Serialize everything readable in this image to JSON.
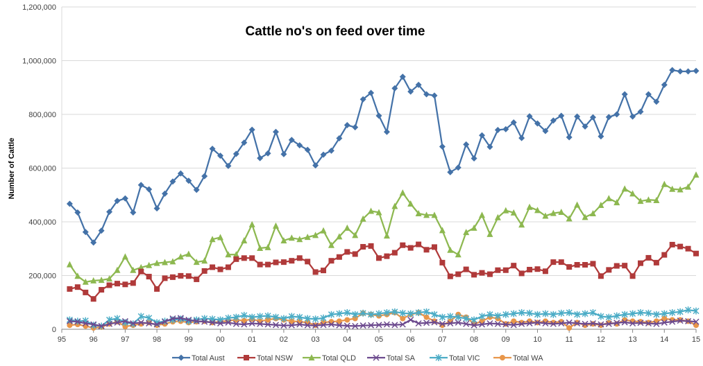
{
  "chart_data": {
    "type": "line",
    "title": "Cattle no's on feed over time",
    "xlabel": "",
    "ylabel": "Number of Cattle",
    "ylim": [
      0,
      1200000
    ],
    "xlim": [
      95,
      115
    ],
    "y_ticks": [
      "0",
      "200,000",
      "400,000",
      "600,000",
      "800,000",
      "1,000,000",
      "1,200,000"
    ],
    "x_ticks": [
      "95",
      "96",
      "97",
      "98",
      "99",
      "00",
      "01",
      "02",
      "03",
      "04",
      "05",
      "06",
      "07",
      "08",
      "09",
      "10",
      "11",
      "12",
      "13",
      "14",
      "15"
    ],
    "grid": "horizontal",
    "legend_position": "bottom",
    "x_start": 95.25,
    "x_step": 0.25,
    "series": [
      {
        "name": "Total Aust",
        "color": "#4472A8",
        "marker": "diamond",
        "values": [
          467000,
          435000,
          362000,
          323000,
          367000,
          437000,
          478000,
          487000,
          435000,
          537000,
          521000,
          450000,
          505000,
          550000,
          580000,
          553000,
          519000,
          570000,
          672000,
          646000,
          608000,
          653000,
          695000,
          743000,
          637000,
          655000,
          735000,
          652000,
          705000,
          685000,
          668000,
          610000,
          650000,
          665000,
          711000,
          760000,
          752000,
          856000,
          880000,
          795000,
          735000,
          897000,
          940000,
          885000,
          910000,
          875000,
          870000,
          680000,
          585000,
          602000,
          688000,
          636000,
          722000,
          679000,
          742000,
          745000,
          770000,
          712000,
          793000,
          766000,
          738000,
          777000,
          795000,
          715000,
          792000,
          755000,
          789000,
          718000,
          790000,
          800000,
          875000,
          792000,
          810000,
          875000,
          847000,
          910000,
          965000,
          960000,
          960000,
          962000
        ]
      },
      {
        "name": "Total NSW",
        "color": "#B03A3A",
        "marker": "square",
        "values": [
          150000,
          157000,
          137000,
          113000,
          147000,
          164000,
          170000,
          167000,
          172000,
          215000,
          196000,
          150000,
          190000,
          194000,
          199000,
          198000,
          186000,
          217000,
          231000,
          223000,
          231000,
          261000,
          265000,
          265000,
          241000,
          241000,
          249000,
          250000,
          255000,
          265000,
          252000,
          213000,
          219000,
          255000,
          269000,
          288000,
          280000,
          307000,
          310000,
          265000,
          272000,
          285000,
          313000,
          303000,
          316000,
          296000,
          306000,
          248000,
          197000,
          205000,
          223000,
          203000,
          210000,
          205000,
          220000,
          220000,
          237000,
          208000,
          222000,
          224000,
          216000,
          250000,
          250000,
          232000,
          240000,
          240000,
          244000,
          198000,
          221000,
          236000,
          237000,
          198000,
          246000,
          266000,
          248000,
          277000,
          315000,
          308000,
          300000,
          282000
        ]
      },
      {
        "name": "Total QLD",
        "color": "#8DB850",
        "marker": "triangle",
        "values": [
          241000,
          198000,
          176000,
          181000,
          183000,
          188000,
          220000,
          270000,
          220000,
          230000,
          238000,
          246000,
          249000,
          252000,
          270000,
          280000,
          250000,
          255000,
          335000,
          342000,
          278000,
          278000,
          330000,
          390000,
          302000,
          305000,
          385000,
          330000,
          340000,
          335000,
          343000,
          350000,
          367000,
          313000,
          345000,
          377000,
          350000,
          411000,
          440000,
          435000,
          348000,
          458000,
          508000,
          467000,
          431000,
          425000,
          425000,
          368000,
          295000,
          278000,
          361000,
          377000,
          425000,
          354000,
          416000,
          442000,
          434000,
          389000,
          455000,
          443000,
          422000,
          432000,
          436000,
          412000,
          463000,
          417000,
          431000,
          462000,
          487000,
          472000,
          523000,
          505000,
          477000,
          482000,
          480000,
          540000,
          522000,
          520000,
          530000,
          575000
        ]
      },
      {
        "name": "Total SA",
        "color": "#6C4A8E",
        "marker": "x",
        "values": [
          30000,
          28000,
          22000,
          18000,
          12000,
          20000,
          25000,
          30000,
          22000,
          25000,
          22000,
          18000,
          28000,
          40000,
          42000,
          35000,
          30000,
          28000,
          25000,
          22000,
          25000,
          20000,
          18000,
          22000,
          20000,
          18000,
          16000,
          14000,
          15000,
          18000,
          15000,
          14000,
          16000,
          18000,
          15000,
          13000,
          12000,
          14000,
          15000,
          16000,
          18000,
          16000,
          18000,
          35000,
          22000,
          24000,
          26000,
          20000,
          22000,
          25000,
          20000,
          15000,
          18000,
          22000,
          20000,
          18000,
          16000,
          20000,
          22000,
          25000,
          22000,
          20000,
          22000,
          25000,
          22000,
          20000,
          22000,
          18000,
          20000,
          24000,
          26000,
          22000,
          24000,
          22000,
          20000,
          25000,
          28000,
          32000,
          30000,
          28000
        ]
      },
      {
        "name": "Total VIC",
        "color": "#4BACC6",
        "marker": "star",
        "values": [
          35000,
          30000,
          32000,
          15000,
          12000,
          35000,
          40000,
          25000,
          20000,
          48000,
          42000,
          25000,
          30000,
          35000,
          38000,
          30000,
          35000,
          40000,
          38000,
          35000,
          42000,
          45000,
          52000,
          45000,
          48000,
          50000,
          45000,
          40000,
          48000,
          45000,
          40000,
          38000,
          42000,
          55000,
          58000,
          62000,
          55000,
          60000,
          55000,
          58000,
          62000,
          65000,
          60000,
          58000,
          62000,
          65000,
          55000,
          45000,
          48000,
          45000,
          40000,
          35000,
          48000,
          55000,
          50000,
          55000,
          58000,
          62000,
          60000,
          55000,
          58000,
          55000,
          60000,
          62000,
          55000,
          58000,
          62000,
          48000,
          45000,
          50000,
          55000,
          58000,
          62000,
          60000,
          55000,
          58000,
          62000,
          65000,
          72000,
          68000
        ]
      },
      {
        "name": "Total WA",
        "color": "#E8964A",
        "marker": "circle",
        "values": [
          15000,
          18000,
          12000,
          5000,
          8000,
          20000,
          28000,
          10000,
          15000,
          20000,
          25000,
          15000,
          20000,
          28000,
          30000,
          25000,
          28000,
          30000,
          25000,
          28000,
          32000,
          35000,
          32000,
          38000,
          30000,
          35000,
          40000,
          35000,
          30000,
          28000,
          25000,
          15000,
          25000,
          28000,
          30000,
          35000,
          40000,
          60000,
          55000,
          50000,
          55000,
          62000,
          40000,
          55000,
          62000,
          45000,
          30000,
          15000,
          30000,
          55000,
          45000,
          20000,
          30000,
          45000,
          40000,
          20000,
          30000,
          25000,
          30000,
          25000,
          30000,
          25000,
          28000,
          5000,
          25000,
          15000,
          20000,
          15000,
          25000,
          20000,
          35000,
          30000,
          28000,
          25000,
          30000,
          40000,
          35000,
          35000,
          30000,
          15000
        ]
      }
    ]
  }
}
